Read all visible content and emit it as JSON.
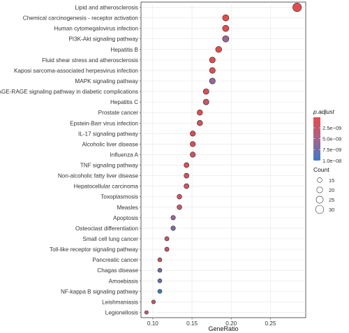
{
  "chart_data": {
    "type": "scatter",
    "title": "",
    "xlabel": "GeneRatio",
    "ylabel": "",
    "xlim": [
      0.085,
      0.295
    ],
    "xticks": [
      0.1,
      0.15,
      0.2,
      0.25
    ],
    "xtick_labels": [
      "0.10",
      "0.15",
      "0.20",
      "0.25"
    ],
    "grid": true,
    "categories": [
      "Lipid and atherosclerosis",
      "Chemical carcinogenesis - receptor activation",
      "Human cytomegalovirus infection",
      "PI3K-Akt signaling pathway",
      "Hepatitis B",
      "Fluid shear stress and atherosclerosis",
      "Kaposi sarcoma-associated herpesvirus infection",
      "MAPK signaling pathway",
      "AGE-RAGE signaling pathway in diabetic complications",
      "Hepatitis C",
      "Prostate cancer",
      "Epstein-Barr virus infection",
      "IL-17 signaling pathway",
      "Alcoholic liver disease",
      "Influenza A",
      "TNF signaling pathway",
      "Non-alcoholic fatty liver disease",
      "Hepatocellular carcinoma",
      "Toxoplasmosis",
      "Measles",
      "Apoptosis",
      "Osteoclast differentiation",
      "Small cell lung cancer",
      "Toll-like receptor signaling pathway",
      "Pancreatic cancer",
      "Chagas disease",
      "Amoebiasis",
      "NF-kappa B signaling pathway",
      "Leishmaniasis",
      "Legionellosis"
    ],
    "points": [
      {
        "x": 0.284,
        "count": 32,
        "padj": 1e-10
      },
      {
        "x": 0.193,
        "count": 22,
        "padj": 1e-10
      },
      {
        "x": 0.193,
        "count": 22,
        "padj": 1e-10
      },
      {
        "x": 0.193,
        "count": 22,
        "padj": 5.5e-09
      },
      {
        "x": 0.184,
        "count": 21,
        "padj": 1e-10
      },
      {
        "x": 0.176,
        "count": 20,
        "padj": 5e-10
      },
      {
        "x": 0.176,
        "count": 20,
        "padj": 5e-10
      },
      {
        "x": 0.176,
        "count": 20,
        "padj": 6e-09
      },
      {
        "x": 0.168,
        "count": 19,
        "padj": 1e-09
      },
      {
        "x": 0.168,
        "count": 19,
        "padj": 1.5e-09
      },
      {
        "x": 0.16,
        "count": 18,
        "padj": 5e-10
      },
      {
        "x": 0.16,
        "count": 18,
        "padj": 1.5e-09
      },
      {
        "x": 0.151,
        "count": 17,
        "padj": 5e-10
      },
      {
        "x": 0.151,
        "count": 17,
        "padj": 1e-09
      },
      {
        "x": 0.151,
        "count": 17,
        "padj": 1.5e-09
      },
      {
        "x": 0.143,
        "count": 16,
        "padj": 1e-09
      },
      {
        "x": 0.143,
        "count": 16,
        "padj": 1.5e-09
      },
      {
        "x": 0.143,
        "count": 16,
        "padj": 2e-09
      },
      {
        "x": 0.134,
        "count": 15,
        "padj": 1.5e-09
      },
      {
        "x": 0.134,
        "count": 15,
        "padj": 2e-09
      },
      {
        "x": 0.126,
        "count": 14,
        "padj": 5.5e-09
      },
      {
        "x": 0.126,
        "count": 14,
        "padj": 6.5e-09
      },
      {
        "x": 0.118,
        "count": 13,
        "padj": 2e-09
      },
      {
        "x": 0.118,
        "count": 13,
        "padj": 2.5e-09
      },
      {
        "x": 0.109,
        "count": 12,
        "padj": 2e-09
      },
      {
        "x": 0.109,
        "count": 12,
        "padj": 7.5e-09
      },
      {
        "x": 0.109,
        "count": 12,
        "padj": 8e-09
      },
      {
        "x": 0.109,
        "count": 12,
        "padj": 1e-08
      },
      {
        "x": 0.101,
        "count": 11,
        "padj": 2.5e-09
      },
      {
        "x": 0.092,
        "count": 10,
        "padj": 3e-09
      }
    ],
    "color_legend": {
      "title": "p.adjust",
      "range": [
        1e-10,
        1e-08
      ],
      "ticks": [
        2.5e-09,
        5e-09,
        7.5e-09,
        1e-08
      ],
      "tick_labels": [
        "2.5e−09",
        "5.0e−09",
        "7.5e−09",
        "1.0e−08"
      ],
      "color_low": "#e24c4c",
      "color_mid": "#a6638c",
      "color_high": "#3a7ac8"
    },
    "size_legend": {
      "title": "Count",
      "values": [
        15,
        20,
        25,
        30
      ],
      "labels": [
        "15",
        "20",
        "25",
        "30"
      ]
    }
  }
}
